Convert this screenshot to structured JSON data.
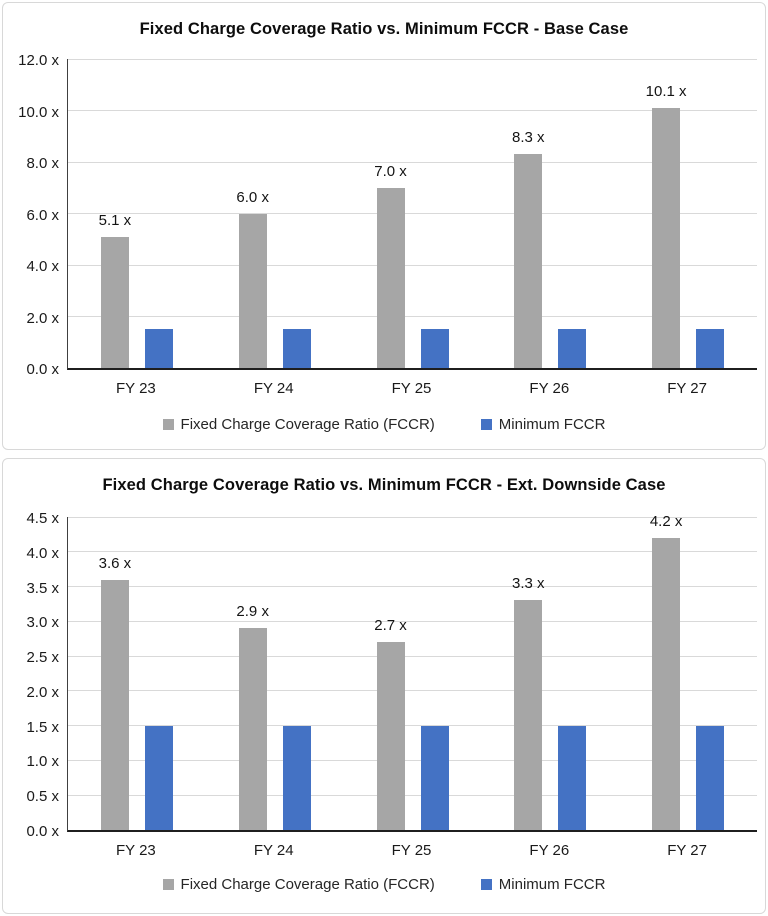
{
  "colors": {
    "fccr_gray": "#a6a6a6",
    "min_fccr_blue": "#4472c4",
    "gridline": "#d9d9d9",
    "axis_line": "#262626",
    "panel_border": "#d8d8d8",
    "text": "#1a1a1a"
  },
  "chart_data": [
    {
      "type": "bar",
      "title": "Fixed Charge Coverage Ratio vs. Minimum FCCR - Base Case",
      "categories": [
        "FY 23",
        "FY 24",
        "FY 25",
        "FY 26",
        "FY 27"
      ],
      "series": [
        {
          "name": "Fixed Charge Coverage Ratio (FCCR)",
          "color_key": "fccr_gray",
          "values": [
            5.1,
            6.0,
            7.0,
            8.3,
            10.1
          ],
          "data_labels": [
            "5.1 x",
            "6.0 x",
            "7.0 x",
            "8.3 x",
            "10.1 x"
          ]
        },
        {
          "name": "Minimum FCCR",
          "color_key": "min_fccr_blue",
          "values": [
            1.5,
            1.5,
            1.5,
            1.5,
            1.5
          ],
          "data_labels": null
        }
      ],
      "xlabel": "",
      "ylabel": "",
      "ylim": [
        0,
        12
      ],
      "ytick_step": 2,
      "ytick_labels": [
        "0.0 x",
        "2.0 x",
        "4.0 x",
        "6.0 x",
        "8.0 x",
        "10.0 x",
        "12.0 x"
      ],
      "grid": true,
      "legend_position": "bottom"
    },
    {
      "type": "bar",
      "title": "Fixed Charge Coverage Ratio vs. Minimum FCCR - Ext. Downside Case",
      "categories": [
        "FY 23",
        "FY 24",
        "FY 25",
        "FY 26",
        "FY 27"
      ],
      "series": [
        {
          "name": "Fixed Charge Coverage Ratio (FCCR)",
          "color_key": "fccr_gray",
          "values": [
            3.6,
            2.9,
            2.7,
            3.3,
            4.2
          ],
          "data_labels": [
            "3.6 x",
            "2.9 x",
            "2.7 x",
            "3.3 x",
            "4.2 x"
          ]
        },
        {
          "name": "Minimum FCCR",
          "color_key": "min_fccr_blue",
          "values": [
            1.5,
            1.5,
            1.5,
            1.5,
            1.5
          ],
          "data_labels": null
        }
      ],
      "xlabel": "",
      "ylabel": "",
      "ylim": [
        0,
        4.5
      ],
      "ytick_step": 0.5,
      "ytick_labels": [
        "0.0 x",
        "0.5 x",
        "1.0 x",
        "1.5 x",
        "2.0 x",
        "2.5 x",
        "3.0 x",
        "3.5 x",
        "4.0 x",
        "4.5 x"
      ],
      "grid": true,
      "legend_position": "bottom"
    }
  ]
}
